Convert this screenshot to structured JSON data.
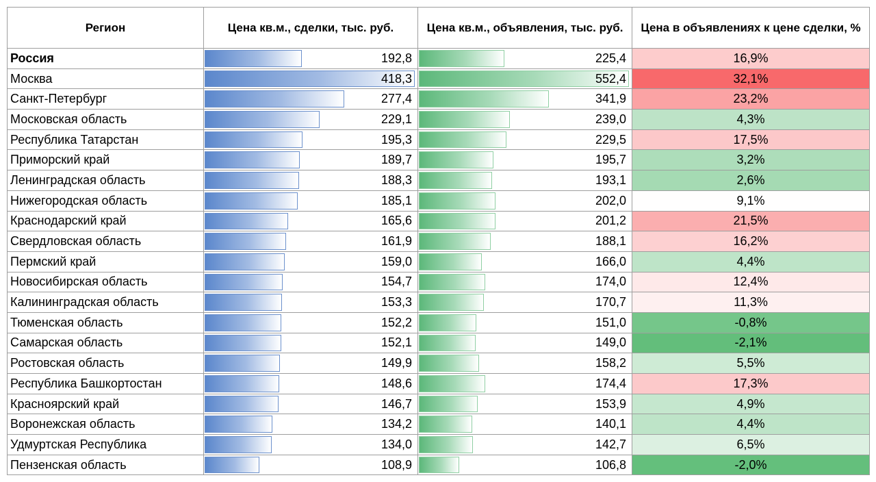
{
  "headers": {
    "region": "Регион",
    "deal_price": "Цена кв.м., сделки, тыс. руб.",
    "listing_price": "Цена кв.м., объявления, тыс. руб.",
    "premium": "Цена в объявлениях к цене сделки, %"
  },
  "colors": {
    "deal_bar": "#5b87cc",
    "listing_bar": "#5cb87a",
    "premium_high": "#f8696b",
    "premium_low": "#63be7b"
  },
  "chart_data": {
    "type": "table",
    "columns": [
      "Регион",
      "Цена кв.м., сделки, тыс. руб.",
      "Цена кв.м., объявления, тыс. руб.",
      "Цена в объявлениях к цене сделки, %"
    ],
    "rows": [
      {
        "region": "Россия",
        "deal": "192,8",
        "listing": "225,4",
        "premium": "16,9%",
        "deal_value": 192.8,
        "listing_value": 225.4,
        "premium_value": 16.9
      },
      {
        "region": "Москва",
        "deal": "418,3",
        "listing": "552,4",
        "premium": "32,1%",
        "deal_value": 418.3,
        "listing_value": 552.4,
        "premium_value": 32.1
      },
      {
        "region": "Санкт-Петербург",
        "deal": "277,4",
        "listing": "341,9",
        "premium": "23,2%",
        "deal_value": 277.4,
        "listing_value": 341.9,
        "premium_value": 23.2
      },
      {
        "region": "Московская область",
        "deal": "229,1",
        "listing": "239,0",
        "premium": "4,3%",
        "deal_value": 229.1,
        "listing_value": 239.0,
        "premium_value": 4.3
      },
      {
        "region": "Республика Татарстан",
        "deal": "195,3",
        "listing": "229,5",
        "premium": "17,5%",
        "deal_value": 195.3,
        "listing_value": 229.5,
        "premium_value": 17.5
      },
      {
        "region": "Приморский край",
        "deal": "189,7",
        "listing": "195,7",
        "premium": "3,2%",
        "deal_value": 189.7,
        "listing_value": 195.7,
        "premium_value": 3.2
      },
      {
        "region": "Ленинградская область",
        "deal": "188,3",
        "listing": "193,1",
        "premium": "2,6%",
        "deal_value": 188.3,
        "listing_value": 193.1,
        "premium_value": 2.6
      },
      {
        "region": "Нижегородская область",
        "deal": "185,1",
        "listing": "202,0",
        "premium": "9,1%",
        "deal_value": 185.1,
        "listing_value": 202.0,
        "premium_value": 9.1
      },
      {
        "region": "Краснодарский край",
        "deal": "165,6",
        "listing": "201,2",
        "premium": "21,5%",
        "deal_value": 165.6,
        "listing_value": 201.2,
        "premium_value": 21.5
      },
      {
        "region": "Свердловская область",
        "deal": "161,9",
        "listing": "188,1",
        "premium": "16,2%",
        "deal_value": 161.9,
        "listing_value": 188.1,
        "premium_value": 16.2
      },
      {
        "region": "Пермский край",
        "deal": "159,0",
        "listing": "166,0",
        "premium": "4,4%",
        "deal_value": 159.0,
        "listing_value": 166.0,
        "premium_value": 4.4
      },
      {
        "region": "Новосибирская область",
        "deal": "154,7",
        "listing": "174,0",
        "premium": "12,4%",
        "deal_value": 154.7,
        "listing_value": 174.0,
        "premium_value": 12.4
      },
      {
        "region": "Калининградская область",
        "deal": "153,3",
        "listing": "170,7",
        "premium": "11,3%",
        "deal_value": 153.3,
        "listing_value": 170.7,
        "premium_value": 11.3
      },
      {
        "region": "Тюменская область",
        "deal": "152,2",
        "listing": "151,0",
        "premium": "-0,8%",
        "deal_value": 152.2,
        "listing_value": 151.0,
        "premium_value": -0.8
      },
      {
        "region": "Самарская область",
        "deal": "152,1",
        "listing": "149,0",
        "premium": "-2,1%",
        "deal_value": 152.1,
        "listing_value": 149.0,
        "premium_value": -2.1
      },
      {
        "region": "Ростовская область",
        "deal": "149,9",
        "listing": "158,2",
        "premium": "5,5%",
        "deal_value": 149.9,
        "listing_value": 158.2,
        "premium_value": 5.5
      },
      {
        "region": "Республика Башкортостан",
        "deal": "148,6",
        "listing": "174,4",
        "premium": "17,3%",
        "deal_value": 148.6,
        "listing_value": 174.4,
        "premium_value": 17.3
      },
      {
        "region": "Красноярский край",
        "deal": "146,7",
        "listing": "153,9",
        "premium": "4,9%",
        "deal_value": 146.7,
        "listing_value": 153.9,
        "premium_value": 4.9
      },
      {
        "region": "Воронежская область",
        "deal": "134,2",
        "listing": "140,1",
        "premium": "4,4%",
        "deal_value": 134.2,
        "listing_value": 140.1,
        "premium_value": 4.4
      },
      {
        "region": "Удмуртская Республика",
        "deal": "134,0",
        "listing": "142,7",
        "premium": "6,5%",
        "deal_value": 134.0,
        "listing_value": 142.7,
        "premium_value": 6.5
      },
      {
        "region": "Пензенская область",
        "deal": "108,9",
        "listing": "106,8",
        "premium": "-2,0%",
        "deal_value": 108.9,
        "listing_value": 106.8,
        "premium_value": -2.0
      }
    ]
  }
}
